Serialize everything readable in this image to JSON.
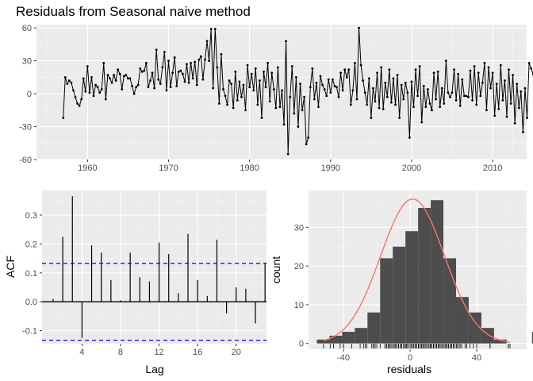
{
  "chart_data": [
    {
      "type": "line",
      "title": "Residuals from Seasonal naive method",
      "xlabel": "",
      "ylabel": "",
      "xlim": [
        1953.7,
        2014.2
      ],
      "ylim": [
        -60,
        63
      ],
      "x_ticks": [
        1960,
        1970,
        1980,
        1990,
        2000,
        2010
      ],
      "y_ticks": [
        -60,
        -30,
        0,
        30,
        60
      ],
      "x_start": 1957.0,
      "x_step": 0.25,
      "grid": true,
      "series": [
        {
          "color": "#000000",
          "values": [
            -22,
            15,
            9,
            12,
            10,
            3,
            -3,
            -9,
            -11,
            -5,
            14,
            2,
            25,
            1,
            15,
            -2,
            8,
            6,
            1,
            4,
            28,
            -5,
            17,
            14,
            10,
            17,
            12,
            22,
            18,
            4,
            16,
            17,
            14,
            14,
            7,
            0,
            6,
            8,
            23,
            20,
            21,
            28,
            6,
            12,
            19,
            5,
            40,
            13,
            9,
            24,
            38,
            3,
            30,
            6,
            19,
            33,
            7,
            20,
            21,
            18,
            11,
            27,
            10,
            28,
            14,
            29,
            8,
            31,
            34,
            13,
            31,
            48,
            30,
            59,
            5,
            59,
            24,
            -9,
            36,
            4,
            -2,
            -10,
            12,
            9,
            -13,
            20,
            -6,
            11,
            -3,
            8,
            -15,
            26,
            6,
            18,
            3,
            23,
            -10,
            12,
            -22,
            20,
            6,
            28,
            -7,
            19,
            4,
            -13,
            24,
            -12,
            3,
            -28,
            48,
            -55,
            -3,
            25,
            -18,
            15,
            -30,
            9,
            -15,
            -3,
            -46,
            -40,
            6,
            23,
            -5,
            10,
            -12,
            16,
            8,
            4,
            -2,
            13,
            1,
            13,
            7,
            6,
            -3,
            19,
            3,
            22,
            15,
            22,
            -10,
            3,
            28,
            -5,
            60,
            26,
            12,
            1,
            -10,
            14,
            -22,
            5,
            -7,
            19,
            -13,
            24,
            -14,
            10,
            -3,
            22,
            -8,
            14,
            -10,
            17,
            -22,
            8,
            -5,
            10,
            1,
            -40,
            11,
            -12,
            22,
            -2,
            25,
            -26,
            7,
            -12,
            4,
            -9,
            -15,
            19,
            -5,
            20,
            -12,
            5,
            -9,
            30,
            1,
            -3,
            1,
            22,
            -6,
            18,
            -11,
            13,
            -2,
            -2,
            -3,
            21,
            -6,
            25,
            -10,
            19,
            -2,
            10,
            28,
            -15,
            24,
            5,
            19,
            -20,
            9,
            -14,
            26,
            -6,
            12,
            -21,
            22,
            -9,
            17,
            -27,
            9,
            -13,
            2,
            -35,
            5,
            -22,
            28,
            23,
            18,
            -14,
            8,
            1,
            17,
            15,
            -2,
            10,
            3,
            3,
            16,
            -2,
            0,
            9,
            8,
            1,
            -1,
            4,
            -23
          ]
        }
      ]
    },
    {
      "type": "bar",
      "title": "",
      "xlabel": "Lag",
      "ylabel": "ACF",
      "xlim": [
        -0.15,
        23.15
      ],
      "ylim": [
        -0.145,
        0.385
      ],
      "x_ticks": [
        4,
        8,
        12,
        16,
        20
      ],
      "y_tick_labels": [
        "-0.1",
        "0.0",
        "0.1",
        "0.2",
        "0.3"
      ],
      "y_ticks": [
        -0.1,
        0.0,
        0.1,
        0.2,
        0.3
      ],
      "grid": true,
      "categories": [
        1,
        2,
        3,
        4,
        5,
        6,
        7,
        8,
        9,
        10,
        11,
        12,
        13,
        14,
        15,
        16,
        17,
        18,
        19,
        20,
        21,
        22,
        23
      ],
      "values": [
        0.01,
        0.225,
        0.365,
        -0.125,
        0.195,
        0.17,
        0.075,
        0.005,
        0.17,
        0.085,
        0.07,
        0.205,
        0.165,
        0.03,
        0.235,
        0.075,
        0.02,
        0.215,
        -0.04,
        0.05,
        0.045,
        -0.075,
        0.135
      ],
      "conf_limit": 0.133,
      "conf_color": "#0000ff",
      "bar_color": "#000000"
    },
    {
      "type": "bar",
      "title": "",
      "xlabel": "residuals",
      "ylabel": "count",
      "xlim": [
        -61,
        70
      ],
      "ylim": [
        -1.5,
        39.5
      ],
      "x_ticks": [
        -40,
        0,
        40
      ],
      "y_ticks": [
        0,
        10,
        20,
        30
      ],
      "grid": true,
      "bin_width": 7.6,
      "bin_start": -56,
      "counts": [
        1,
        2,
        3,
        4,
        8,
        22,
        25,
        29,
        35,
        37,
        22,
        12,
        8,
        4,
        1,
        0,
        0,
        3
      ],
      "bar_color": "#4d4d4d",
      "density_color": "#f8766d",
      "density_mean": 1.5,
      "density_sd": 19.2,
      "density_peak": 37.3,
      "density_from": -52,
      "density_to": 60,
      "rug": [
        -52,
        -48,
        -46,
        -42,
        -40,
        -40,
        -35,
        -30,
        -28,
        -27,
        -26,
        -23,
        -22,
        -22,
        -22,
        -22,
        -21,
        -20,
        -18,
        -15,
        -15,
        -15,
        -14,
        -14,
        -13,
        -13,
        -13,
        -12,
        -12,
        -12,
        -12,
        -11,
        -10,
        -10,
        -10,
        -10,
        -10,
        -9,
        -9,
        -9,
        -9,
        -8,
        -8,
        -7,
        -7,
        -6,
        -6,
        -6,
        -5,
        -5,
        -5,
        -5,
        -5,
        -4,
        -3,
        -3,
        -3,
        -3,
        -3,
        -3,
        -2,
        -2,
        -2,
        -2,
        -2,
        -2,
        -1,
        0,
        1,
        1,
        1,
        1,
        1,
        2,
        2,
        3,
        3,
        3,
        3,
        4,
        4,
        4,
        5,
        5,
        5,
        5,
        6,
        6,
        6,
        6,
        7,
        7,
        7,
        8,
        8,
        8,
        8,
        8,
        9,
        9,
        9,
        9,
        10,
        10,
        10,
        10,
        10,
        11,
        11,
        12,
        12,
        12,
        12,
        13,
        13,
        13,
        13,
        14,
        14,
        14,
        14,
        15,
        15,
        15,
        16,
        16,
        16,
        17,
        17,
        17,
        18,
        18,
        18,
        19,
        19,
        19,
        19,
        19,
        20,
        20,
        20,
        20,
        21,
        21,
        22,
        22,
        22,
        22,
        22,
        23,
        23,
        24,
        24,
        24,
        25,
        25,
        25,
        26,
        26,
        26,
        27,
        28,
        28,
        28,
        28,
        29,
        30,
        30,
        31,
        33,
        34,
        36,
        38,
        40,
        48,
        48,
        59,
        59,
        60
      ]
    }
  ]
}
